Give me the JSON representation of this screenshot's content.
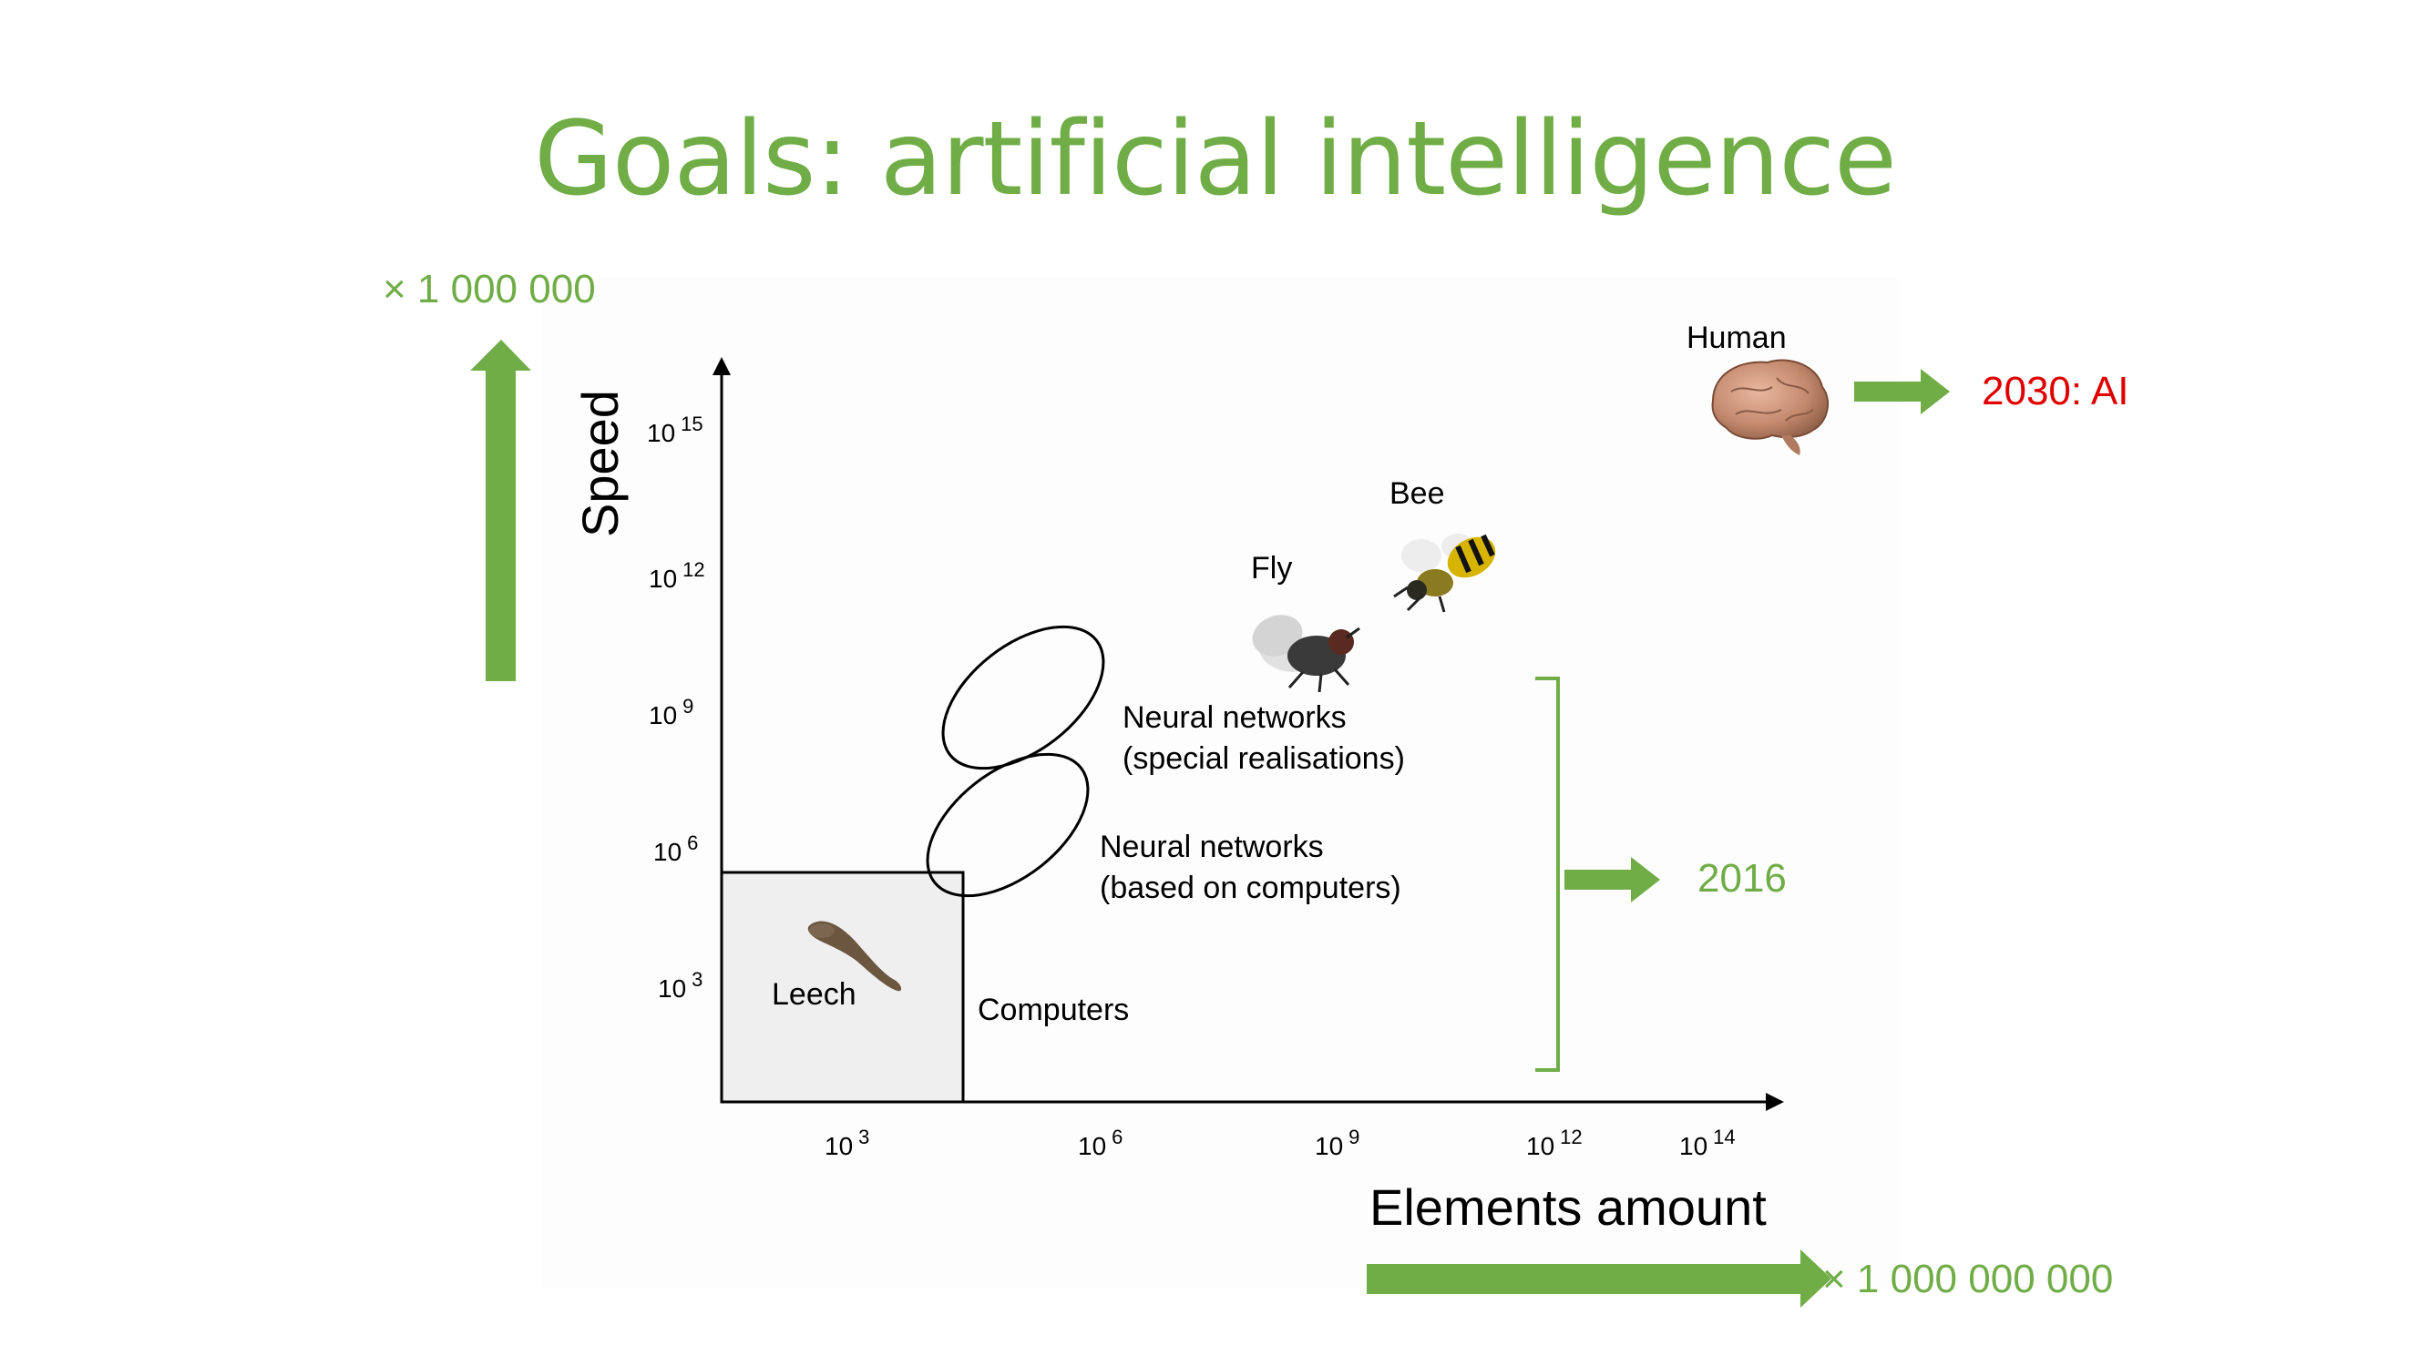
{
  "slide": {
    "title": "Goals: artificial intelligence",
    "speed_multiplier": "× 1 000 000",
    "elements_multiplier": "× 1 000 000 000",
    "goal_label": "2030: AI",
    "current_label": "2016"
  },
  "diagram": {
    "y_axis_label": "Speed",
    "x_axis_label": "Elements amount",
    "y_ticks": [
      {
        "base": "10",
        "exp": "3"
      },
      {
        "base": "10",
        "exp": "6"
      },
      {
        "base": "10",
        "exp": "9"
      },
      {
        "base": "10",
        "exp": "12"
      },
      {
        "base": "10",
        "exp": "15"
      }
    ],
    "x_ticks": [
      {
        "base": "10",
        "exp": "3"
      },
      {
        "base": "10",
        "exp": "6"
      },
      {
        "base": "10",
        "exp": "9"
      },
      {
        "base": "10",
        "exp": "12"
      },
      {
        "base": "10",
        "exp": "14"
      }
    ],
    "labels": {
      "leech": "Leech",
      "computers": "Computers",
      "nn_computers_line1": "Neural networks",
      "nn_computers_line2": "(based on computers)",
      "nn_special_line1": "Neural networks",
      "nn_special_line2": "(special realisations)",
      "fly": "Fly",
      "bee": "Bee",
      "human": "Human"
    }
  },
  "colors": {
    "accent_green": "#70ad47",
    "goal_red": "#e00000"
  },
  "icons": [
    "leech-icon",
    "fly-icon",
    "bee-icon",
    "brain-icon"
  ]
}
